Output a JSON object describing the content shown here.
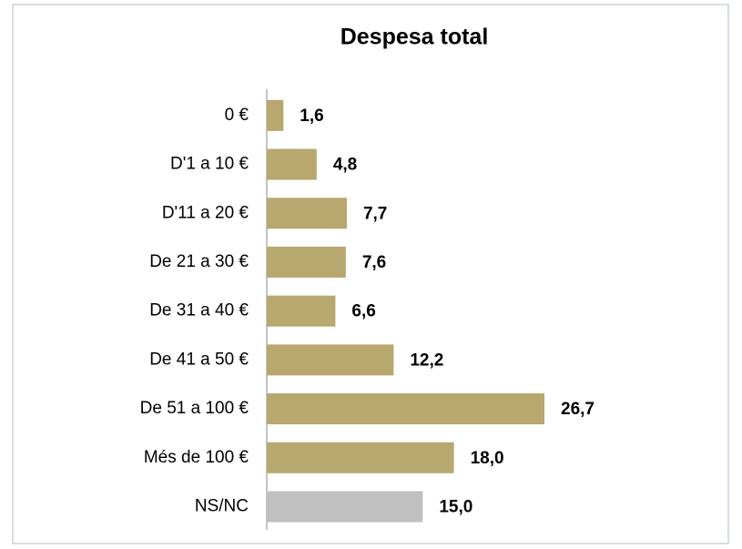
{
  "chart_data": {
    "type": "bar",
    "orientation": "horizontal",
    "title": "Despesa total",
    "categories": [
      "0 €",
      "D'1 a 10 €",
      "D'11 a 20 €",
      "De 21 a 30 €",
      "De 31 a 40 €",
      "De 41 a 50 €",
      "De 51 a 100 €",
      "Més de 100 €",
      "NS/NC"
    ],
    "values": [
      1.6,
      4.8,
      7.7,
      7.6,
      6.6,
      12.2,
      26.7,
      18.0,
      15.0
    ],
    "value_labels": [
      "1,6",
      "4,8",
      "7,7",
      "7,6",
      "6,6",
      "12,2",
      "26,7",
      "18,0",
      "15,0"
    ],
    "colors": [
      "#b8a76e",
      "#b8a76e",
      "#b8a76e",
      "#b8a76e",
      "#b8a76e",
      "#b8a76e",
      "#b8a76e",
      "#b8a76e",
      "#c0c0c0"
    ]
  }
}
